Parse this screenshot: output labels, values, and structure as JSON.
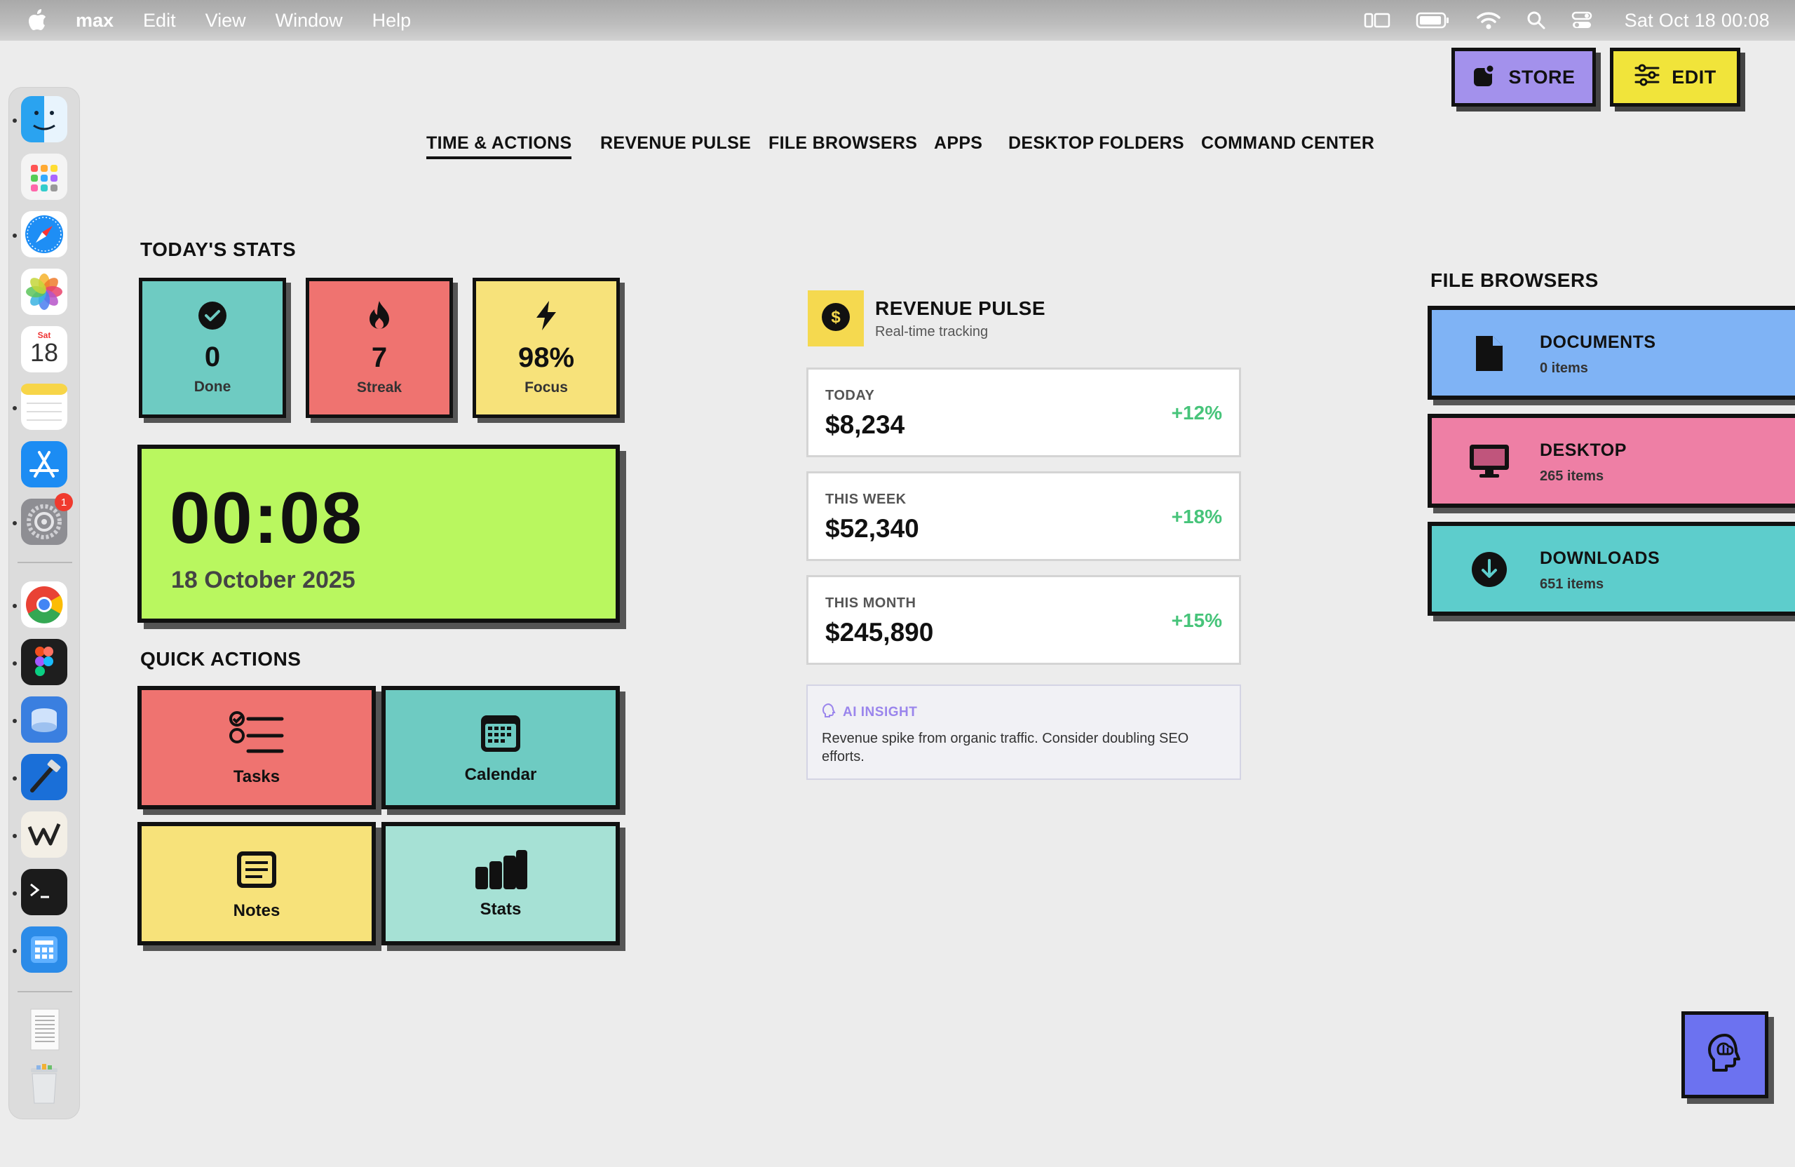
{
  "menubar": {
    "app_name": "max",
    "menus": [
      "Edit",
      "View",
      "Window",
      "Help"
    ],
    "clock": "Sat Oct 18  00:08"
  },
  "dock": {
    "calendar_day": "Sat",
    "calendar_date": "18",
    "settings_badge": "1"
  },
  "top_buttons": {
    "store_label": "STORE",
    "edit_label": "EDIT"
  },
  "nav": {
    "tabs": [
      "TIME & ACTIONS",
      "REVENUE PULSE",
      "FILE BROWSERS",
      "APPS",
      "DESKTOP FOLDERS",
      "COMMAND CENTER"
    ],
    "active": "TIME & ACTIONS"
  },
  "todays_stats": {
    "title": "TODAY'S STATS",
    "cards": [
      {
        "value": "0",
        "label": "Done",
        "color": "#6ecbc2",
        "icon": "check-circle-icon"
      },
      {
        "value": "7",
        "label": "Streak",
        "color": "#ef7370",
        "icon": "flame-icon"
      },
      {
        "value": "98%",
        "label": "Focus",
        "color": "#f7e27a",
        "icon": "bolt-icon"
      }
    ]
  },
  "clock_card": {
    "time": "00:08",
    "date": "18 October 2025"
  },
  "quick_actions": {
    "title": "QUICK ACTIONS",
    "items": [
      {
        "label": "Tasks",
        "color": "#ef7370",
        "icon": "checklist-icon"
      },
      {
        "label": "Calendar",
        "color": "#6ecbc2",
        "icon": "calendar-icon"
      },
      {
        "label": "Notes",
        "color": "#f7e27a",
        "icon": "notes-icon"
      },
      {
        "label": "Stats",
        "color": "#a6e1d5",
        "icon": "bar-chart-icon"
      }
    ]
  },
  "revenue": {
    "title": "REVENUE PULSE",
    "subtitle": "Real-time tracking",
    "cards": [
      {
        "label": "TODAY",
        "value": "$8,234",
        "change": "+12%"
      },
      {
        "label": "THIS WEEK",
        "value": "$52,340",
        "change": "+18%"
      },
      {
        "label": "THIS MONTH",
        "value": "$245,890",
        "change": "+15%"
      }
    ],
    "insight": {
      "label": "AI INSIGHT",
      "text": "Revenue spike from organic traffic. Consider doubling SEO efforts."
    }
  },
  "file_browsers": {
    "title": "FILE BROWSERS",
    "items": [
      {
        "name": "DOCUMENTS",
        "count": "0 items",
        "color": "#7fb3f5",
        "icon": "document-icon"
      },
      {
        "name": "DESKTOP",
        "count": "265 items",
        "color": "#ee7fa5",
        "icon": "monitor-icon"
      },
      {
        "name": "DOWNLOADS",
        "count": "651 items",
        "color": "#5dcdcc",
        "icon": "download-icon"
      }
    ]
  },
  "ai_button": {
    "icon": "brain-head-icon"
  }
}
